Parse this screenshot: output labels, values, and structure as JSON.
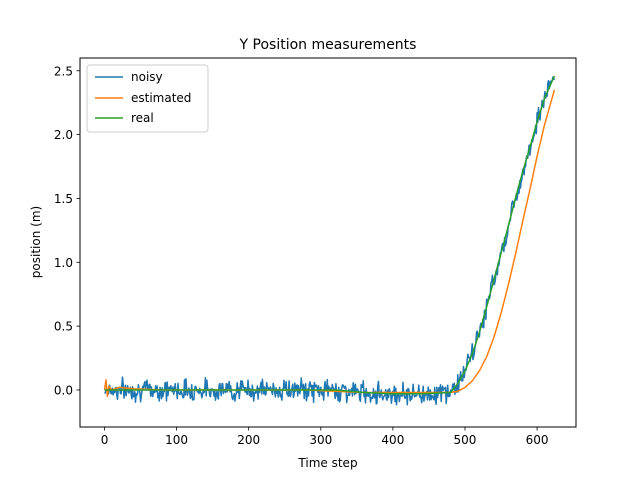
{
  "chart_data": {
    "type": "line",
    "title": "Y Position measurements",
    "xlabel": "Time step",
    "ylabel": "position (m)",
    "xlim": [
      -34,
      654
    ],
    "ylim": [
      -0.29,
      2.6
    ],
    "x_ticks": [
      0,
      100,
      200,
      300,
      400,
      500,
      600
    ],
    "y_ticks": [
      0.0,
      0.5,
      1.0,
      1.5,
      2.0,
      2.5
    ],
    "y_tick_labels": [
      "0.0",
      "0.5",
      "1.0",
      "1.5",
      "2.0",
      "2.5"
    ],
    "grid": false,
    "legend_position": "upper-left",
    "series": [
      {
        "name": "noisy",
        "color": "#1f77b4",
        "noise_amplitude": 0.05,
        "x": [
          0,
          40,
          80,
          120,
          160,
          200,
          240,
          280,
          320,
          360,
          400,
          440,
          480,
          490,
          500,
          510,
          520,
          530,
          540,
          550,
          560,
          570,
          580,
          590,
          600,
          610,
          624
        ],
        "y": [
          0.0,
          0.0,
          0.0,
          0.0,
          0.0,
          0.0,
          0.0,
          0.0,
          0.0,
          -0.02,
          -0.03,
          -0.03,
          -0.02,
          0.05,
          0.15,
          0.28,
          0.45,
          0.65,
          0.86,
          1.07,
          1.28,
          1.5,
          1.71,
          1.9,
          2.1,
          2.28,
          2.46
        ]
      },
      {
        "name": "estimated",
        "color": "#ff7f0e",
        "x": [
          0,
          2,
          4,
          6,
          10,
          20,
          40,
          80,
          120,
          160,
          200,
          240,
          280,
          320,
          360,
          400,
          440,
          480,
          490,
          500,
          510,
          520,
          530,
          540,
          550,
          560,
          570,
          580,
          590,
          600,
          610,
          624
        ],
        "y": [
          0.0,
          0.08,
          -0.05,
          0.03,
          0.0,
          0.02,
          0.01,
          0.0,
          0.0,
          0.0,
          0.0,
          0.0,
          0.0,
          -0.01,
          -0.02,
          -0.02,
          -0.02,
          -0.02,
          -0.01,
          0.02,
          0.07,
          0.15,
          0.26,
          0.41,
          0.6,
          0.82,
          1.06,
          1.32,
          1.57,
          1.83,
          2.07,
          2.35
        ]
      },
      {
        "name": "real",
        "color": "#2ca02c",
        "x": [
          0,
          40,
          80,
          120,
          160,
          200,
          240,
          280,
          320,
          360,
          400,
          440,
          480,
          490,
          500,
          510,
          520,
          530,
          540,
          550,
          560,
          570,
          580,
          590,
          600,
          610,
          624
        ],
        "y": [
          0.0,
          0.0,
          0.0,
          0.0,
          0.0,
          0.0,
          0.0,
          0.0,
          0.0,
          -0.02,
          -0.03,
          -0.03,
          -0.02,
          0.05,
          0.15,
          0.28,
          0.45,
          0.65,
          0.86,
          1.07,
          1.28,
          1.5,
          1.71,
          1.9,
          2.1,
          2.28,
          2.46
        ]
      }
    ]
  }
}
